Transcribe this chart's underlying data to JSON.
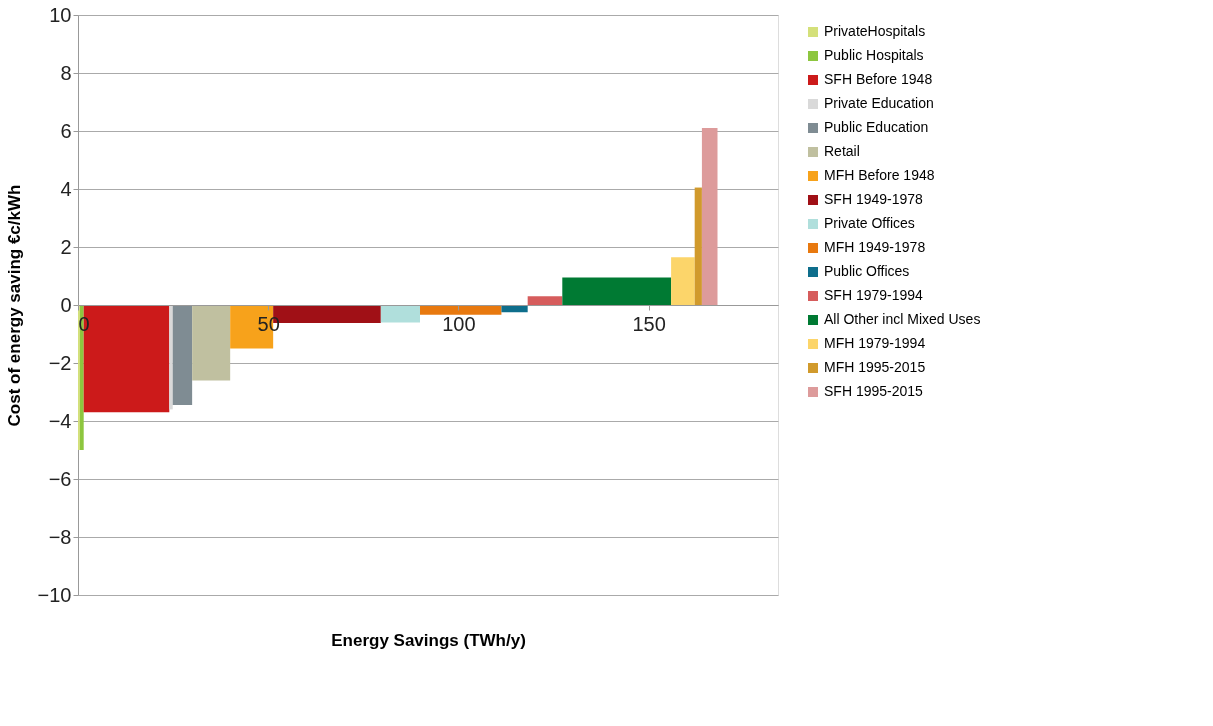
{
  "chart_data": {
    "type": "area",
    "xlabel": "Energy Savings (TWh/y)",
    "ylabel": "Cost of energy saving  €c/kWh",
    "xlim": [
      0,
      184
    ],
    "xticks": [
      0,
      50,
      100,
      150
    ],
    "ylim": [
      -10,
      10
    ],
    "yticks": [
      -10,
      -8,
      -6,
      -4,
      -2,
      0,
      2,
      4,
      6,
      8,
      10
    ],
    "grid": "y",
    "legend": "right",
    "series": [
      {
        "name": "PrivateHospitals",
        "color": "#d4e07a",
        "x": [
          0,
          0.5
        ],
        "values": [
          -5.0,
          -5.0
        ]
      },
      {
        "name": "Public Hospitals",
        "color": "#8dc63f",
        "x": [
          0.5,
          1.5
        ],
        "values": [
          -5.0,
          -5.0
        ]
      },
      {
        "name": "SFH Before 1948",
        "color": "#cc1a1a",
        "x": [
          1.5,
          24
        ],
        "values": [
          -3.7,
          -3.7
        ]
      },
      {
        "name": "Private Education",
        "color": "#d9d9d9",
        "x": [
          24,
          24.9
        ],
        "values": [
          -3.6,
          -3.6
        ]
      },
      {
        "name": "Public Education",
        "color": "#7f8c93",
        "x": [
          24.9,
          30
        ],
        "values": [
          -3.45,
          -3.45
        ]
      },
      {
        "name": "Retail",
        "color": "#c0c0a0",
        "x": [
          30,
          40
        ],
        "values": [
          -2.6,
          -2.6
        ]
      },
      {
        "name": "MFH Before 1948",
        "color": "#f7a21b",
        "x": [
          40,
          51.3
        ],
        "values": [
          -1.5,
          -1.5
        ]
      },
      {
        "name": "SFH 1949-1978",
        "color": "#a01016",
        "x": [
          51.3,
          79.6
        ],
        "values": [
          -0.62,
          -0.62
        ]
      },
      {
        "name": "Private Offices",
        "color": "#b0dfdc",
        "x": [
          79.6,
          89.9
        ],
        "values": [
          -0.6,
          -0.6
        ]
      },
      {
        "name": "MFH 1949-1978",
        "color": "#e8790f",
        "x": [
          89.9,
          111.3
        ],
        "values": [
          -0.34,
          -0.34
        ]
      },
      {
        "name": "Public Offices",
        "color": "#0e6e8c",
        "x": [
          111.3,
          118.2
        ],
        "values": [
          -0.25,
          -0.25
        ]
      },
      {
        "name": "SFH 1979-1994",
        "color": "#d65c5c",
        "x": [
          118.2,
          127.3
        ],
        "values": [
          0.3,
          0.3
        ]
      },
      {
        "name": "All Other incl Mixed Uses",
        "color": "#007a33",
        "x": [
          127.3,
          155.9
        ],
        "values": [
          0.95,
          0.95
        ]
      },
      {
        "name": "MFH 1979-1994",
        "color": "#fcd56a",
        "x": [
          155.9,
          162.1
        ],
        "values": [
          1.65,
          1.65
        ]
      },
      {
        "name": "MFH 1995-2015",
        "color": "#d19a2c",
        "x": [
          162.1,
          164
        ],
        "values": [
          4.05,
          4.05
        ]
      },
      {
        "name": "SFH 1995-2015",
        "color": "#dd9b9b",
        "x": [
          164,
          168.1
        ],
        "values": [
          6.1,
          6.1
        ]
      }
    ]
  }
}
